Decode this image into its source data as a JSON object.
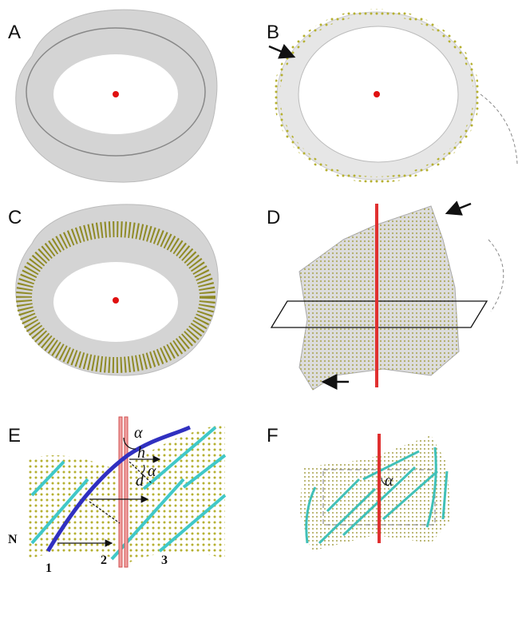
{
  "panels": [
    {
      "label": "A"
    },
    {
      "label": "B"
    },
    {
      "label": "C"
    },
    {
      "label": "D"
    },
    {
      "label": "E"
    },
    {
      "label": "F"
    }
  ],
  "panel_e": {
    "alpha_top": "α",
    "h": "h",
    "alpha_mid": "α",
    "d": "d",
    "n": "N",
    "strands": [
      "1",
      "2",
      "3"
    ]
  },
  "panel_f": {
    "alpha": "α"
  }
}
